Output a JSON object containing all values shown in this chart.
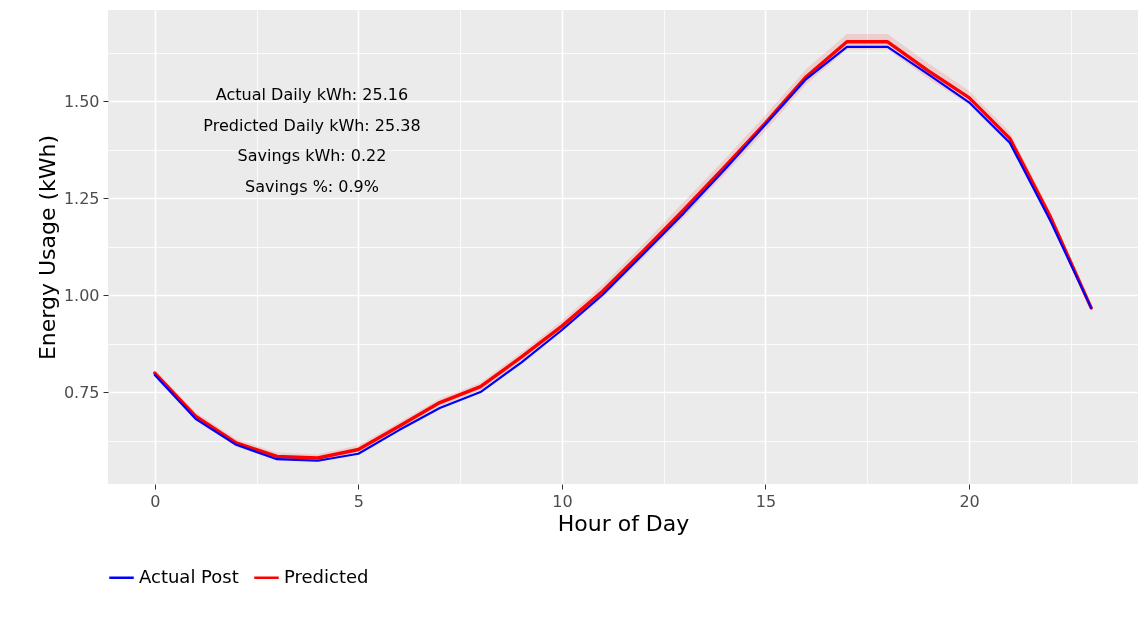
{
  "chart_data": {
    "type": "line",
    "xlabel": "Hour of Day",
    "ylabel": "Energy Usage (kWh)",
    "x": [
      0,
      1,
      2,
      3,
      4,
      5,
      6,
      7,
      8,
      9,
      10,
      11,
      12,
      13,
      14,
      15,
      16,
      17,
      18,
      19,
      20,
      21,
      22,
      23
    ],
    "series": [
      {
        "name": "Actual Post",
        "color": "#0000ff",
        "values": [
          0.794,
          0.681,
          0.614,
          0.577,
          0.573,
          0.591,
          0.652,
          0.709,
          0.75,
          0.826,
          0.91,
          1.001,
          1.106,
          1.212,
          1.324,
          1.44,
          1.557,
          1.64,
          1.64,
          1.569,
          1.497,
          1.393,
          1.191,
          0.967
        ]
      },
      {
        "name": "Predicted",
        "color": "#ff0000",
        "values": [
          0.799,
          0.688,
          0.619,
          0.584,
          0.58,
          0.602,
          0.662,
          0.723,
          0.764,
          0.84,
          0.92,
          1.01,
          1.114,
          1.221,
          1.331,
          1.444,
          1.563,
          1.653,
          1.653,
          1.578,
          1.509,
          1.404,
          1.201,
          0.967
        ],
        "lower": [
          0.789,
          0.678,
          0.609,
          0.574,
          0.57,
          0.592,
          0.652,
          0.713,
          0.754,
          0.828,
          0.906,
          0.994,
          1.096,
          1.201,
          1.311,
          1.424,
          1.543,
          1.633,
          1.633,
          1.558,
          1.491,
          1.388,
          1.187,
          0.959
        ],
        "upper": [
          0.809,
          0.698,
          0.629,
          0.594,
          0.59,
          0.612,
          0.672,
          0.733,
          0.774,
          0.852,
          0.934,
          1.026,
          1.132,
          1.241,
          1.351,
          1.464,
          1.583,
          1.673,
          1.673,
          1.598,
          1.527,
          1.42,
          1.215,
          0.975
        ]
      }
    ],
    "xlim": [
      -1.15,
      24.15
    ],
    "xticks": [
      0,
      {
        "value": 2.5,
        "label": null
      },
      5,
      {
        "value": 7.5,
        "label": null
      },
      10,
      {
        "value": 12.5,
        "label": null
      },
      15,
      {
        "value": 17.5,
        "label": null
      },
      20,
      {
        "value": 22.5,
        "label": null
      }
    ],
    "ylim": [
      0.513,
      1.735
    ],
    "yticks": [
      {
        "value": 0.625,
        "label": null
      },
      0.75,
      {
        "value": 0.875,
        "label": null
      },
      {
        "value": 1,
        "label": "1.00"
      },
      {
        "value": 1.125,
        "label": null
      },
      1.25,
      {
        "value": 1.375,
        "label": null
      },
      {
        "value": 1.5,
        "label": "1.50"
      },
      {
        "value": 1.625,
        "label": null
      }
    ],
    "annotations": [
      "Actual Daily kWh: 25.16",
      "Predicted Daily kWh: 25.38",
      "Savings kWh: 0.22",
      "Savings %: 0.9%"
    ],
    "grid": true,
    "legend": "bottom",
    "marker": "none",
    "line_style": "solid"
  }
}
